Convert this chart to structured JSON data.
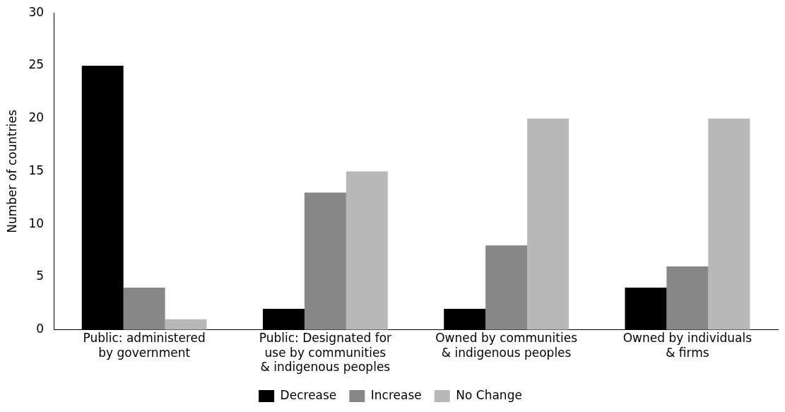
{
  "chart_data": {
    "type": "bar",
    "ylabel": "Number of countries",
    "categories": [
      "Public: administered by government",
      "Public: Designated for use by communities & indigenous peoples",
      "Owned by communities & indigenous peoples",
      "Owned by individuals & firms"
    ],
    "series": [
      {
        "name": "Decrease",
        "color": "#000000",
        "values": [
          25,
          2,
          2,
          4
        ]
      },
      {
        "name": "Increase",
        "color": "#878787",
        "values": [
          4,
          13,
          8,
          6
        ]
      },
      {
        "name": "No Change",
        "color": "#b8b8b8",
        "values": [
          1,
          15,
          20,
          20
        ]
      }
    ],
    "ylim": [
      0,
      30
    ],
    "yticks": [
      0,
      5,
      10,
      15,
      20,
      25,
      30
    ],
    "grid": false,
    "legend": "bottom"
  }
}
